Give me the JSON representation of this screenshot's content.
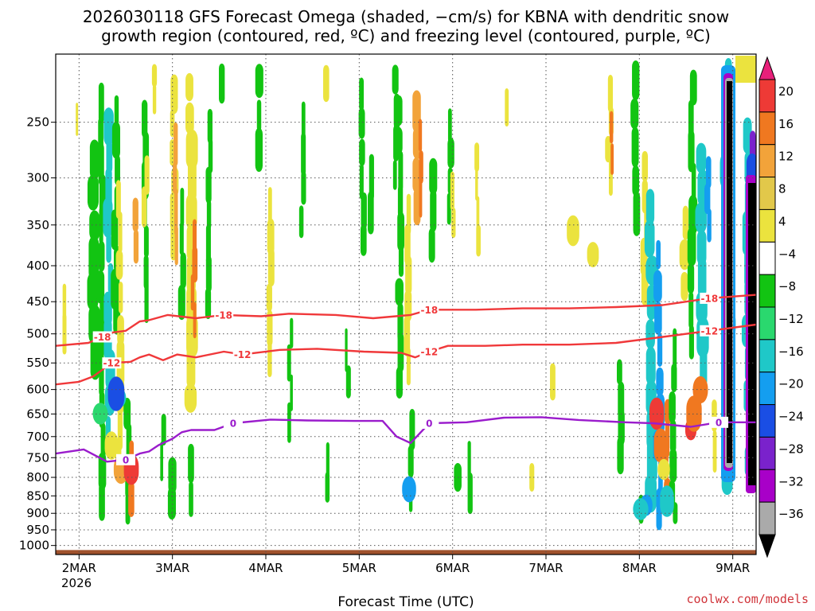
{
  "chart_data": {
    "type": "heatmap",
    "title_line1": "2026030118 GFS Forecast Omega (shaded, −cm/s) for KBNA with dendritic snow",
    "title_line2": "growth region (contoured, red, ºC) and freezing level (contoured, purple, ºC)",
    "xlabel": "Forecast Time (UTC)",
    "ylabel": "",
    "credit": "coolwx.com/models",
    "y_axis": {
      "scale": "log-pressure",
      "ticks": [
        250,
        300,
        350,
        400,
        450,
        500,
        550,
        600,
        650,
        700,
        750,
        800,
        850,
        900,
        950,
        1000
      ],
      "range": [
        200,
        1030
      ]
    },
    "x_axis": {
      "range_days": [
        0,
        7.5
      ],
      "ticks": [
        {
          "day": 0.25,
          "label": "2MAR"
        },
        {
          "day": 1.25,
          "label": "3MAR"
        },
        {
          "day": 2.25,
          "label": "4MAR"
        },
        {
          "day": 3.25,
          "label": "5MAR"
        },
        {
          "day": 4.25,
          "label": "6MAR"
        },
        {
          "day": 5.25,
          "label": "7MAR"
        },
        {
          "day": 6.25,
          "label": "8MAR"
        },
        {
          "day": 7.25,
          "label": "9MAR"
        }
      ],
      "sub_label": "2026"
    },
    "colorbar": {
      "labels": [
        "20",
        "16",
        "12",
        "8",
        "4",
        "−4",
        "−8",
        "−12",
        "−16",
        "−20",
        "−24",
        "−28",
        "−32",
        "−36"
      ],
      "colors": [
        "#e8207a",
        "#ee3a36",
        "#f07820",
        "#f2a33a",
        "#e2c84a",
        "#ebe33e",
        "#ffffff",
        "#12c412",
        "#2ad86e",
        "#1fc8c8",
        "#149ef0",
        "#1a4ee4",
        "#7a22cc",
        "#a800c8",
        "#aaaaaa",
        "#000000"
      ]
    },
    "contours": [
      {
        "label": "-18",
        "color": "#f0383a",
        "x": [
          0,
          0.35,
          0.5,
          0.6,
          0.75,
          0.9,
          1.0,
          1.2,
          1.5,
          1.8,
          2.2,
          2.5,
          3.0,
          3.4,
          3.8,
          4.0,
          4.5,
          5.0,
          5.5,
          6.0,
          6.5,
          7.0,
          7.5
        ],
        "p": [
          520,
          515,
          505,
          498,
          495,
          480,
          478,
          470,
          475,
          470,
          472,
          468,
          470,
          475,
          470,
          462,
          462,
          460,
          460,
          458,
          455,
          445,
          440
        ]
      },
      {
        "label": "-12",
        "color": "#f0383a",
        "x": [
          0,
          0.25,
          0.4,
          0.6,
          0.8,
          0.9,
          1.0,
          1.15,
          1.3,
          1.5,
          1.8,
          2.0,
          2.4,
          2.8,
          3.3,
          3.7,
          3.85,
          4.0,
          4.2,
          4.6,
          5.0,
          5.5,
          6.0,
          6.5,
          7.0,
          7.5
        ],
        "p": [
          590,
          585,
          575,
          550,
          548,
          540,
          535,
          545,
          535,
          540,
          530,
          535,
          527,
          525,
          530,
          532,
          540,
          530,
          520,
          520,
          518,
          518,
          515,
          505,
          495,
          485
        ]
      },
      {
        "label": "0",
        "color": "#9a1ccc",
        "x": [
          0,
          0.3,
          0.55,
          0.75,
          0.9,
          1.0,
          1.1,
          1.25,
          1.35,
          1.45,
          1.7,
          1.9,
          2.3,
          2.7,
          3.2,
          3.5,
          3.65,
          3.8,
          4.0,
          4.4,
          4.8,
          5.2,
          5.6,
          6.1,
          6.4,
          6.8,
          7.1,
          7.5
        ],
        "p": [
          740,
          730,
          760,
          755,
          740,
          735,
          720,
          705,
          690,
          685,
          685,
          670,
          662,
          664,
          665,
          665,
          700,
          715,
          670,
          668,
          658,
          657,
          663,
          668,
          670,
          678,
          668,
          668
        ]
      }
    ],
    "ground_level_hpa": 1015
  }
}
